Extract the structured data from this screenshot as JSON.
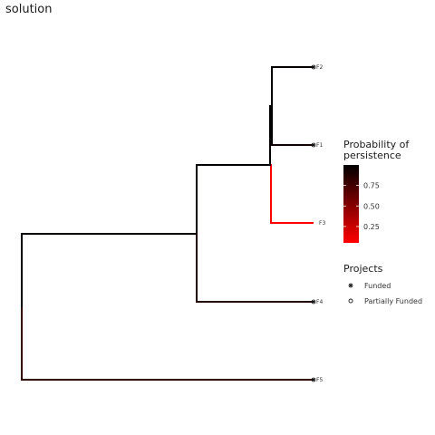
{
  "chart_data": {
    "type": "tree",
    "title": "solution",
    "tips": [
      {
        "name": "F2",
        "project": "Funded",
        "persistence": 0.97
      },
      {
        "name": "F1",
        "project": "Funded",
        "persistence": 0.92
      },
      {
        "name": "F3",
        "project": "",
        "persistence": 0.05
      },
      {
        "name": "F4",
        "project": "Funded",
        "persistence": 0.88
      },
      {
        "name": "F5",
        "project": "Funded",
        "persistence": 0.82
      }
    ],
    "branches": [
      {
        "id": "root",
        "persistence": 1.0
      },
      {
        "id": "F5",
        "persistence": 0.82
      },
      {
        "id": "n1",
        "persistence": 0.99
      },
      {
        "id": "F4",
        "persistence": 0.88
      },
      {
        "id": "n2",
        "persistence": 0.99
      },
      {
        "id": "F3",
        "persistence": 0.05
      },
      {
        "id": "n3",
        "persistence": 1.0
      },
      {
        "id": "F2",
        "persistence": 0.97
      },
      {
        "id": "F1",
        "persistence": 0.92
      }
    ],
    "color_legend": {
      "title_line1": "Probability of",
      "title_line2": "persistence",
      "ticks": [
        "0.75",
        "0.50",
        "0.25"
      ],
      "tick_values": [
        0.75,
        0.5,
        0.25
      ],
      "range": [
        0.05,
        1.0
      ],
      "low_color": "#ff0000",
      "high_color": "#000000"
    },
    "shape_legend": {
      "title": "Projects",
      "items": [
        {
          "label": "Funded",
          "symbol": "asterisk"
        },
        {
          "label": "Partially Funded",
          "symbol": "circle"
        }
      ]
    }
  }
}
